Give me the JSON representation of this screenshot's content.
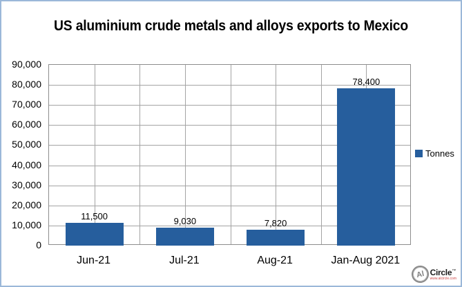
{
  "chart_data": {
    "type": "bar",
    "title": "US aluminium crude metals and alloys exports to Mexico",
    "categories": [
      "Jun-21",
      "Jul-21",
      "Aug-21",
      "Jan-Aug 2021"
    ],
    "values": [
      11500,
      9030,
      7820,
      78400
    ],
    "value_labels": [
      "11,500",
      "9,030",
      "7,820",
      "78,400"
    ],
    "y_ticks": [
      "90,000",
      "80,000",
      "70,000",
      "60,000",
      "50,000",
      "40,000",
      "30,000",
      "20,000",
      "10,000",
      "0"
    ],
    "ylim": [
      0,
      90000
    ],
    "xlabel": "",
    "ylabel": "",
    "grid": "both",
    "vertical_grid_intervals": 8,
    "legend_position": "right",
    "legend": [
      {
        "label": "Tonnes",
        "color": "#265e9d"
      }
    ]
  },
  "branding": {
    "logo_circle_text": "Al",
    "logo_name": "Circle",
    "logo_tm": "™",
    "logo_url": "www.alcircle.com"
  },
  "colors": {
    "bar": "#265e9d",
    "frame_border": "#9bb8d9",
    "grid": "#a3a3a3",
    "plot_border": "#8c8c8c",
    "text": "#000000",
    "logo_gray": "#7f7f7f",
    "logo_url_red": "#cc4444"
  }
}
